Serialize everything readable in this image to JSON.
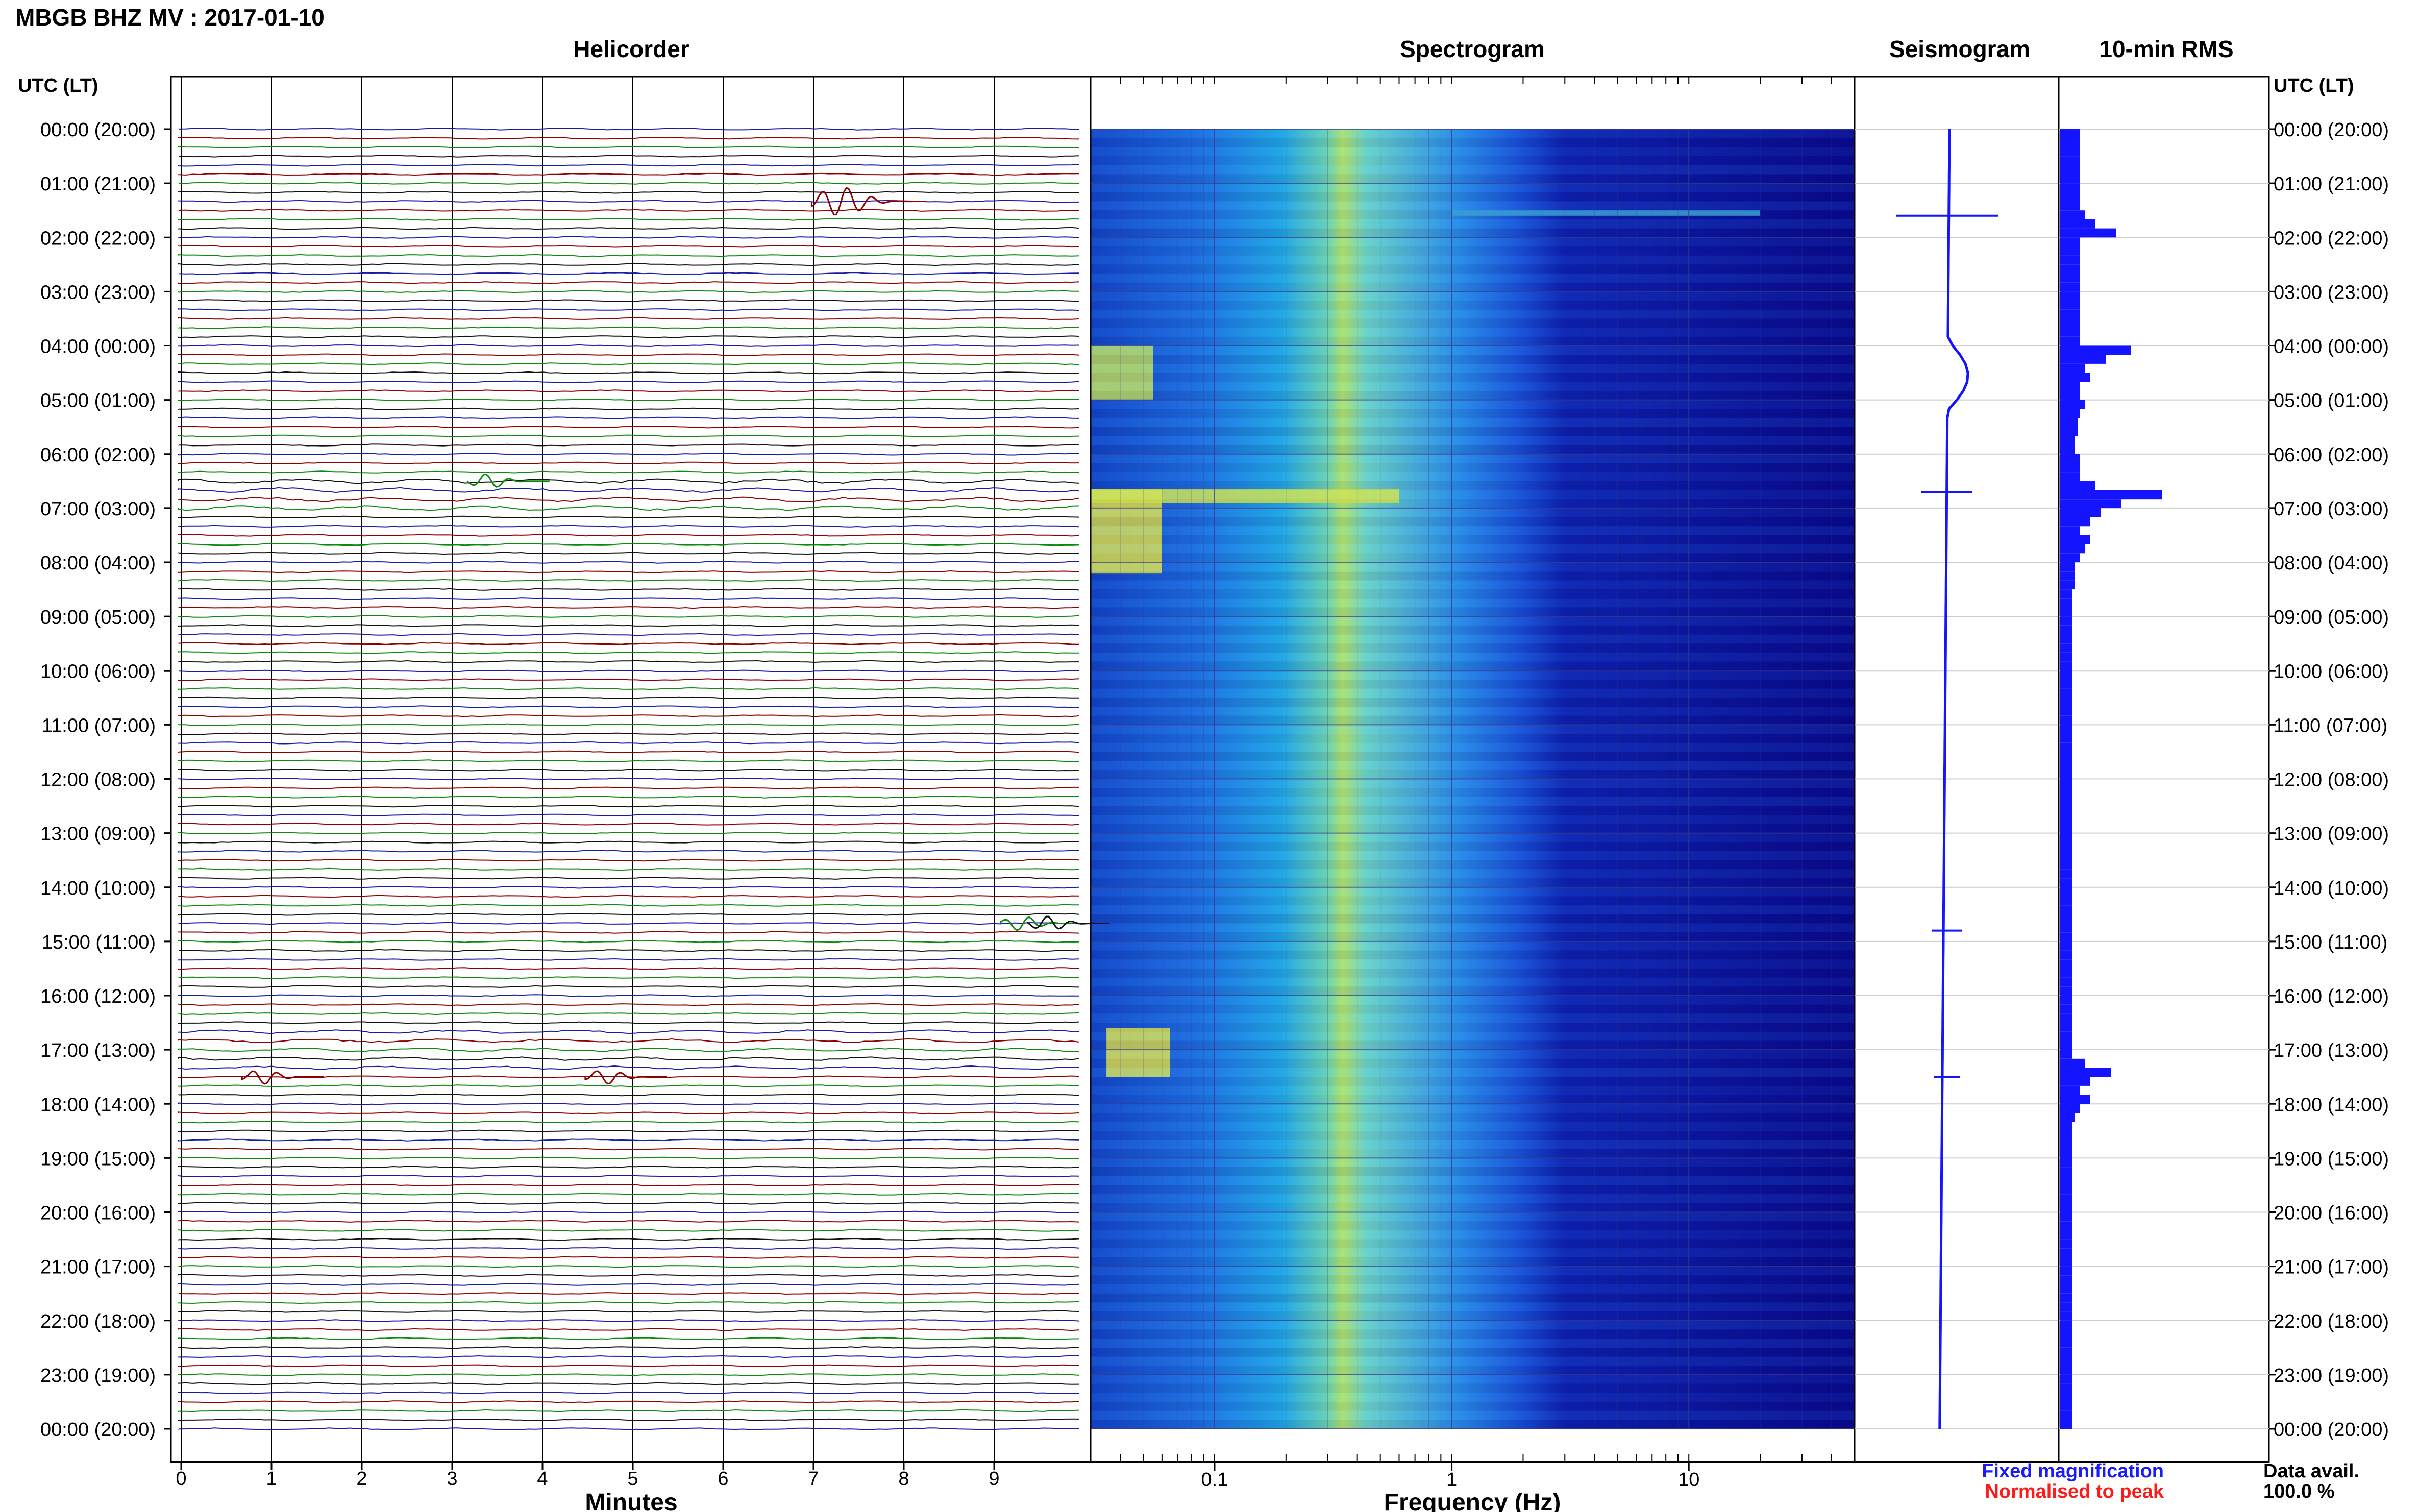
{
  "title": "MBGB BHZ MV : 2017-01-10",
  "panels": {
    "helicorder": "Helicorder",
    "spectrogram": "Spectrogram",
    "seismogram": "Seismogram",
    "rms": "10-min RMS"
  },
  "axis_header_left": "UTC (LT)",
  "axis_header_right": "UTC (LT)",
  "time_labels": [
    "00:00 (20:00)",
    "01:00 (21:00)",
    "02:00 (22:00)",
    "03:00 (23:00)",
    "04:00 (00:00)",
    "05:00 (01:00)",
    "06:00 (02:00)",
    "07:00 (03:00)",
    "08:00 (04:00)",
    "09:00 (05:00)",
    "10:00 (06:00)",
    "11:00 (07:00)",
    "12:00 (08:00)",
    "13:00 (09:00)",
    "14:00 (10:00)",
    "15:00 (11:00)",
    "16:00 (12:00)",
    "17:00 (13:00)",
    "18:00 (14:00)",
    "19:00 (15:00)",
    "20:00 (16:00)",
    "21:00 (17:00)",
    "22:00 (18:00)",
    "23:00 (19:00)",
    "00:00 (20:00)"
  ],
  "x_axes": {
    "minutes": {
      "label": "Minutes",
      "ticks": [
        "0",
        "1",
        "2",
        "3",
        "4",
        "5",
        "6",
        "7",
        "8",
        "9"
      ]
    },
    "frequency": {
      "label": "Frequency (Hz)",
      "ticks": [
        "0.1",
        "1",
        "10"
      ],
      "scale": "log"
    }
  },
  "legend": {
    "fixed": "Fixed magnification",
    "normalised": "Normalised to peak",
    "fixed_color": "#1a1aff",
    "normalised_color": "#ff1a1a"
  },
  "data_avail": {
    "label": "Data avail.",
    "value": "100.0 %"
  },
  "colors": {
    "trace_cycle": [
      "#1a1aa0",
      "#8b0000",
      "#0a8a0a",
      "#111111"
    ],
    "spectrogram_low": "#0a0a8a",
    "spectrogram_high": "#d8e84a",
    "rms_bar": "#1414ff",
    "seismogram": "#1414ff"
  },
  "chart_data": [
    {
      "type": "line",
      "title": "Helicorder",
      "xlabel": "Minutes",
      "xlim": [
        0,
        10
      ],
      "ylabel": "UTC (LT)",
      "rows_per_hour": 6,
      "events": [
        {
          "time": "01:20",
          "minute": 7.3,
          "trace": "red"
        },
        {
          "time": "06:30",
          "minute": 3.4,
          "trace": "green"
        },
        {
          "time": "14:40",
          "minute": 9.3,
          "trace": "green"
        },
        {
          "time": "14:40",
          "minute": 9.6,
          "trace": "black"
        },
        {
          "time": "17:30",
          "minute": 0.9,
          "trace": "red"
        },
        {
          "time": "17:30",
          "minute": 4.7,
          "trace": "red"
        }
      ]
    },
    {
      "type": "heatmap",
      "title": "Spectrogram",
      "xlabel": "Frequency (Hz)",
      "xscale": "log",
      "xlim": [
        0.03,
        50
      ],
      "notes": "Energy band near 0.25 Hz; strong low-frequency energy 04:00-05:00, 06:40-08:10 and 16:40-17:30"
    },
    {
      "type": "line",
      "title": "Seismogram"
    },
    {
      "type": "bar",
      "title": "10-min RMS",
      "orientation": "horizontal",
      "values": [
        0.2,
        0.2,
        0.2,
        0.2,
        0.2,
        0.2,
        0.2,
        0.2,
        0.2,
        0.25,
        0.35,
        0.55,
        0.2,
        0.2,
        0.2,
        0.2,
        0.2,
        0.2,
        0.2,
        0.2,
        0.2,
        0.2,
        0.2,
        0.2,
        0.7,
        0.45,
        0.25,
        0.3,
        0.2,
        0.2,
        0.25,
        0.2,
        0.18,
        0.18,
        0.15,
        0.15,
        0.2,
        0.2,
        0.2,
        0.35,
        1.0,
        0.6,
        0.4,
        0.3,
        0.2,
        0.3,
        0.25,
        0.2,
        0.15,
        0.15,
        0.15,
        0.12,
        0.12,
        0.12,
        0.12,
        0.12,
        0.12,
        0.12,
        0.12,
        0.12,
        0.12,
        0.12,
        0.12,
        0.12,
        0.12,
        0.12,
        0.12,
        0.12,
        0.12,
        0.12,
        0.12,
        0.12,
        0.12,
        0.12,
        0.12,
        0.12,
        0.12,
        0.12,
        0.12,
        0.12,
        0.12,
        0.12,
        0.12,
        0.12,
        0.12,
        0.12,
        0.12,
        0.12,
        0.12,
        0.12,
        0.12,
        0.12,
        0.12,
        0.12,
        0.12,
        0.12,
        0.12,
        0.12,
        0.12,
        0.12,
        0.12,
        0.12,
        0.12,
        0.25,
        0.5,
        0.3,
        0.2,
        0.3,
        0.2,
        0.15,
        0.12,
        0.12,
        0.12,
        0.12,
        0.12,
        0.12,
        0.12,
        0.12,
        0.12,
        0.12,
        0.12,
        0.12,
        0.12,
        0.12,
        0.12,
        0.12,
        0.12,
        0.12,
        0.12,
        0.12,
        0.12,
        0.12,
        0.12,
        0.12,
        0.12,
        0.12,
        0.12,
        0.12,
        0.12,
        0.12,
        0.12,
        0.12,
        0.12,
        0.12
      ]
    }
  ]
}
